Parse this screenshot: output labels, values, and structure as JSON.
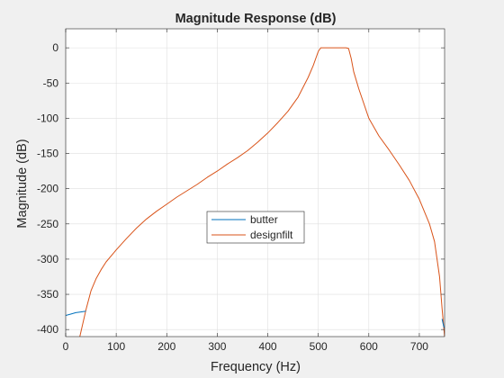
{
  "chart_data": {
    "type": "line",
    "title": "Magnitude Response (dB)",
    "xlabel": "Frequency (Hz)",
    "ylabel": "Magnitude (dB)",
    "xlim": [
      0,
      750
    ],
    "ylim": [
      -410,
      27
    ],
    "grid": true,
    "legend_position": "center",
    "xticks": [
      0,
      100,
      200,
      300,
      400,
      500,
      600,
      700
    ],
    "xtick_labels": [
      "0",
      "100",
      "200",
      "300",
      "400",
      "500",
      "600",
      "700"
    ],
    "yticks": [
      0,
      -50,
      -100,
      -150,
      -200,
      -250,
      -300,
      -350,
      -400
    ],
    "ytick_labels": [
      "0",
      "-50",
      "-100",
      "-150",
      "-200",
      "-250",
      "-300",
      "-350",
      "-400"
    ],
    "series": [
      {
        "name": "butter",
        "color": "#0072bd",
        "x": [
          0,
          10,
          20,
          30,
          40
        ],
        "y": [
          -380,
          -378,
          -376,
          -375,
          -374
        ]
      },
      {
        "name": "butter",
        "color": "#0072bd",
        "x": [
          745,
          748,
          750
        ],
        "y": [
          -385,
          -395,
          -398
        ]
      },
      {
        "name": "designfilt",
        "color": "#d95319",
        "x": [
          28,
          40,
          50,
          60,
          70,
          80,
          100,
          120,
          140,
          160,
          180,
          200,
          220,
          240,
          260,
          280,
          300,
          320,
          340,
          360,
          380,
          400,
          420,
          440,
          460,
          480,
          490,
          500,
          505,
          510,
          520,
          540,
          550,
          555,
          560,
          565,
          570,
          580,
          600,
          620,
          640,
          660,
          680,
          700,
          720,
          730,
          740,
          745,
          750
        ],
        "y": [
          -410,
          -372,
          -345,
          -328,
          -315,
          -304,
          -287,
          -271,
          -256,
          -243,
          -232,
          -222,
          -212,
          -203,
          -194,
          -184,
          -175,
          -165,
          -156,
          -146,
          -134,
          -121,
          -106,
          -90,
          -70,
          -42,
          -25,
          -5,
          0,
          0,
          0,
          0,
          0,
          0,
          -1,
          -15,
          -34,
          -58,
          -100,
          -125,
          -145,
          -166,
          -188,
          -215,
          -250,
          -275,
          -325,
          -370,
          -410
        ]
      }
    ],
    "legend": [
      "butter",
      "designfilt"
    ]
  }
}
